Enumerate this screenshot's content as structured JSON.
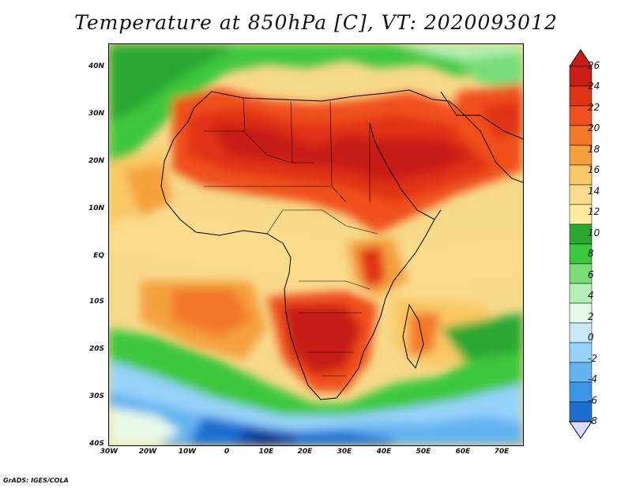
{
  "title": "Temperature at 850hPa [C], VT: 2020093012",
  "credit": "GrADS: IGES/COLA",
  "lat_labels": [
    "40N",
    "30N",
    "20N",
    "10N",
    "EQ",
    "10S",
    "20S",
    "30S",
    "40S"
  ],
  "lon_labels": [
    "30W",
    "20W",
    "10W",
    "0",
    "10E",
    "20E",
    "30E",
    "40E",
    "50E",
    "60E",
    "70E"
  ],
  "colorbar": {
    "labels": [
      "26",
      "24",
      "22",
      "20",
      "18",
      "16",
      "14",
      "12",
      "10",
      "8",
      "6",
      "4",
      "2",
      "0",
      "-2",
      "-4",
      "-6",
      "-8"
    ],
    "colors": [
      "#c81e14",
      "#e03214",
      "#f0501e",
      "#f37828",
      "#f5a03c",
      "#fac864",
      "#fadc8c",
      "#ffeca0",
      "#2aa832",
      "#3cc83c",
      "#78dc78",
      "#b4f0b4",
      "#e6fae6",
      "#c8e8f8",
      "#96d2fa",
      "#64b4f0",
      "#3c96e6",
      "#1e6ed2",
      "#0a46aa",
      "#08287a"
    ],
    "max_color": "#c81e14",
    "min_color": "#dcdcff"
  }
}
